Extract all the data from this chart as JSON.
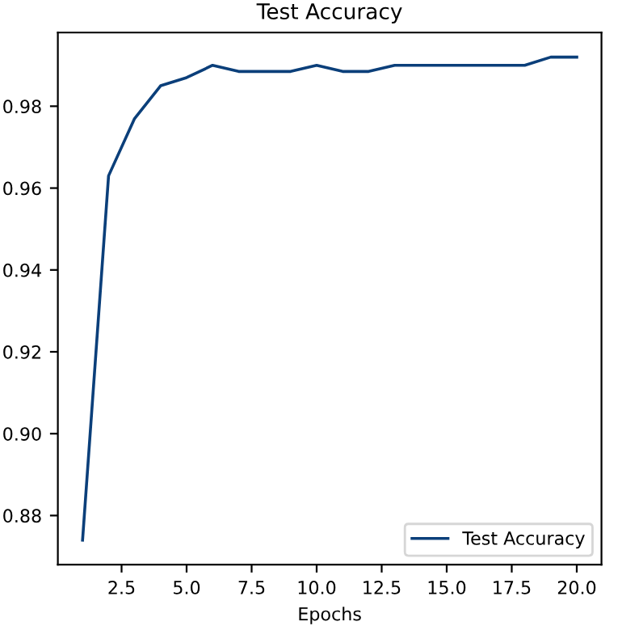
{
  "chart_data": {
    "type": "line",
    "title": "Test Accuracy",
    "xlabel": "Epochs",
    "x": [
      1,
      2,
      3,
      4,
      5,
      6,
      7,
      8,
      9,
      10,
      11,
      12,
      13,
      14,
      15,
      16,
      17,
      18,
      19,
      20
    ],
    "series": [
      {
        "name": "Test Accuracy",
        "color": "#0b3f7a",
        "values": [
          0.874,
          0.963,
          0.977,
          0.985,
          0.987,
          0.99,
          0.9885,
          0.9885,
          0.9885,
          0.99,
          0.9885,
          0.9885,
          0.99,
          0.99,
          0.99,
          0.99,
          0.99,
          0.99,
          0.992,
          0.992
        ]
      }
    ],
    "xlim": [
      0.05,
      20.95
    ],
    "xticks": [
      {
        "value": 2.5,
        "label": "2.5"
      },
      {
        "value": 5,
        "label": "5.0"
      },
      {
        "value": 7.5,
        "label": "7.5"
      },
      {
        "value": 10,
        "label": "10.0"
      },
      {
        "value": 12.5,
        "label": "12.5"
      },
      {
        "value": 15,
        "label": "15.0"
      },
      {
        "value": 17.5,
        "label": "17.5"
      },
      {
        "value": 20,
        "label": "20.0"
      }
    ],
    "ylim": [
      0.868,
      0.998
    ],
    "yticks": [
      {
        "value": 0.88,
        "label": "0.88"
      },
      {
        "value": 0.9,
        "label": "0.90"
      },
      {
        "value": 0.92,
        "label": "0.92"
      },
      {
        "value": 0.94,
        "label": "0.94"
      },
      {
        "value": 0.96,
        "label": "0.96"
      },
      {
        "value": 0.98,
        "label": "0.98"
      }
    ],
    "legend": "bottom right",
    "grid": false
  }
}
